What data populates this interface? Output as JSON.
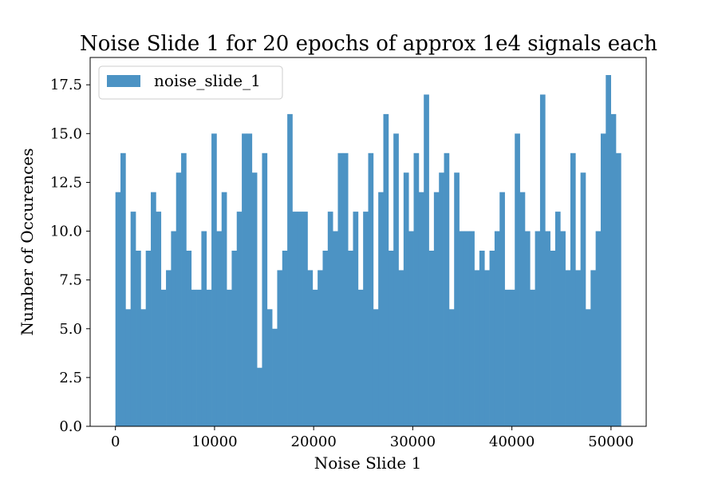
{
  "chart_data": {
    "type": "bar",
    "title": "Noise Slide 1 for 20 epochs of approx 1e4 signals each",
    "xlabel": "Noise Slide 1",
    "ylabel": "Number of Occurences",
    "legend": {
      "entries": [
        "noise_slide_1"
      ],
      "placement": "top-left"
    },
    "bar_color": "#4c93c4",
    "grid": false,
    "xlim": [
      -2550,
      53550
    ],
    "ylim": [
      0,
      18.9
    ],
    "xticks": [
      0,
      10000,
      20000,
      30000,
      40000,
      50000
    ],
    "xtick_labels": [
      "0",
      "10000",
      "20000",
      "30000",
      "40000",
      "50000"
    ],
    "yticks": [
      0.0,
      2.5,
      5.0,
      7.5,
      10.0,
      12.5,
      15.0,
      17.5
    ],
    "ytick_labels": [
      "0.0",
      "2.5",
      "5.0",
      "7.5",
      "10.0",
      "12.5",
      "15.0",
      "17.5"
    ],
    "bins": {
      "start": 0,
      "end": 51000,
      "count": 100
    },
    "series": [
      {
        "name": "noise_slide_1",
        "values": [
          12,
          14,
          6,
          11,
          9,
          6,
          9,
          12,
          11,
          7,
          8,
          10,
          13,
          14,
          9,
          7,
          7,
          10,
          7,
          15,
          10,
          12,
          7,
          9,
          11,
          15,
          15,
          13,
          3,
          14,
          6,
          5,
          8,
          9,
          16,
          11,
          11,
          11,
          8,
          7,
          8,
          9,
          11,
          10,
          14,
          14,
          9,
          11,
          7,
          11,
          14,
          6,
          12,
          16,
          9,
          15,
          8,
          13,
          10,
          14,
          12,
          17,
          9,
          12,
          13,
          14,
          6,
          13,
          10,
          10,
          10,
          8,
          9,
          8,
          9,
          10,
          12,
          7,
          7,
          15,
          12,
          10,
          7,
          10,
          17,
          10,
          9,
          11,
          10,
          8,
          14,
          8,
          13,
          6,
          8,
          10,
          15,
          18,
          16,
          14
        ]
      }
    ]
  }
}
